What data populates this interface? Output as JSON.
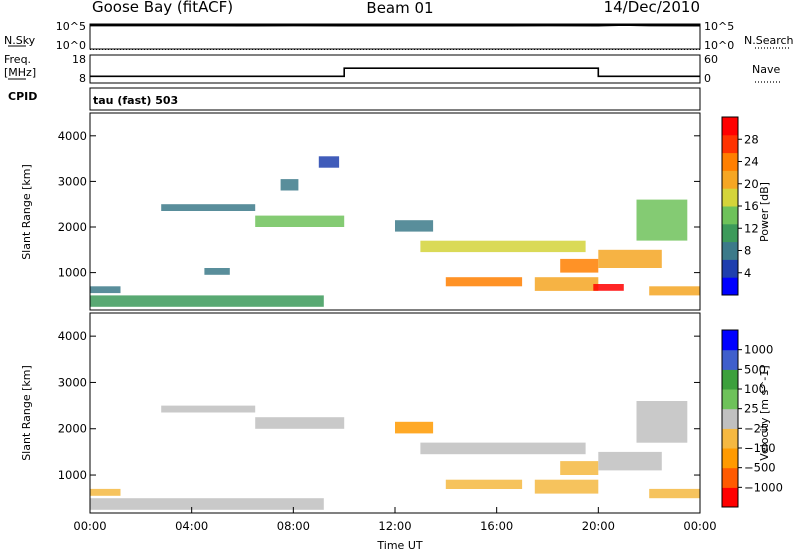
{
  "header": {
    "station": "Goose Bay (fitACF)",
    "beam": "Beam 01",
    "date": "14/Dec/2010"
  },
  "status_panel": {
    "nsky_label": "N.Sky",
    "nsky_ticks": [
      "10^5",
      "10^0"
    ],
    "nsearch_label": "N.Search",
    "nsearch_ticks": [
      "10^5",
      "10^0"
    ],
    "freq_label_line1": "Freq.",
    "freq_label_line2": "[MHz]",
    "freq_ticks": [
      "18",
      "8"
    ],
    "nave_label": "Nave",
    "nave_ticks": [
      "60",
      "0"
    ],
    "cpid_label": "CPID",
    "cpid_value": "tau (fast) 503"
  },
  "colors": {
    "data_line": "#000000",
    "ground_scatter": "#c0c0c0",
    "power_scale": [
      "#0000ff",
      "#1f3fae",
      "#3c7a8a",
      "#3c9a5a",
      "#6ec25a",
      "#d4d43a",
      "#f5a623",
      "#ff7f00",
      "#ff3300",
      "#ff0000"
    ],
    "velocity_scale": [
      "#ff0000",
      "#ff5a00",
      "#ff9a00",
      "#f5b841",
      "#c0c0c0",
      "#6ec25a",
      "#3ca03c",
      "#3f5fcc",
      "#0000ff"
    ]
  },
  "chart_data": [
    {
      "type": "line",
      "title": "N.Sky / N.Search",
      "x": [
        0,
        2,
        4,
        6,
        8,
        10,
        12,
        14,
        16,
        18,
        20,
        21,
        22,
        24
      ],
      "series": [
        {
          "name": "N.Sky",
          "values": [
            55000,
            54000,
            55000,
            53000,
            54000,
            52000,
            53000,
            52000,
            53000,
            54000,
            53000,
            70000,
            56000,
            53000
          ]
        }
      ],
      "xlim": [
        0,
        24
      ],
      "ylim": [
        1,
        100000
      ],
      "yscale": "log"
    },
    {
      "type": "line",
      "title": "Freq. / Nave",
      "x": [
        0,
        10,
        10,
        20,
        20,
        24
      ],
      "series": [
        {
          "name": "Freq.",
          "values": [
            10.4,
            10.4,
            13.3,
            13.3,
            10.4,
            10.4
          ]
        },
        {
          "name": "Nave",
          "values": [
            20,
            20,
            20,
            20,
            20,
            20
          ]
        }
      ],
      "xlim": [
        0,
        24
      ],
      "ylim": [
        8,
        18
      ]
    },
    {
      "type": "heatmap",
      "ylabel": "Slant Range [km]",
      "colorbar_label": "Power [dB]",
      "colorbar_ticks": [
        "28",
        "24",
        "20",
        "16",
        "12",
        "8",
        "4"
      ],
      "clim": [
        0,
        30
      ],
      "xlim": [
        0,
        24
      ],
      "ylim": [
        180,
        4500
      ],
      "yticks": [
        "4000",
        "3000",
        "2000",
        "1000"
      ],
      "regions": [
        {
          "x0": 0.0,
          "x1": 9.2,
          "y0": 250,
          "y1": 500,
          "value": 10
        },
        {
          "x0": 0.0,
          "x1": 1.2,
          "y0": 550,
          "y1": 700,
          "value": 8
        },
        {
          "x0": 2.8,
          "x1": 6.5,
          "y0": 2350,
          "y1": 2500,
          "value": 6
        },
        {
          "x0": 6.5,
          "x1": 10.0,
          "y0": 2000,
          "y1": 2250,
          "value": 14
        },
        {
          "x0": 7.5,
          "x1": 8.2,
          "y0": 2800,
          "y1": 3050,
          "value": 6
        },
        {
          "x0": 9.0,
          "x1": 9.8,
          "y0": 3300,
          "y1": 3550,
          "value": 5
        },
        {
          "x0": 4.5,
          "x1": 5.5,
          "y0": 950,
          "y1": 1100,
          "value": 8
        },
        {
          "x0": 12.0,
          "x1": 13.5,
          "y0": 1900,
          "y1": 2150,
          "value": 6
        },
        {
          "x0": 13.0,
          "x1": 19.5,
          "y0": 1450,
          "y1": 1700,
          "value": 16
        },
        {
          "x0": 14.0,
          "x1": 17.0,
          "y0": 700,
          "y1": 900,
          "value": 22
        },
        {
          "x0": 17.5,
          "x1": 20.0,
          "y0": 600,
          "y1": 900,
          "value": 20
        },
        {
          "x0": 18.5,
          "x1": 20.0,
          "y0": 1000,
          "y1": 1300,
          "value": 22
        },
        {
          "x0": 19.8,
          "x1": 21.0,
          "y0": 600,
          "y1": 750,
          "value": 28
        },
        {
          "x0": 20.0,
          "x1": 22.5,
          "y0": 1100,
          "y1": 1500,
          "value": 18
        },
        {
          "x0": 21.5,
          "x1": 23.5,
          "y0": 1700,
          "y1": 2600,
          "value": 14
        },
        {
          "x0": 22.0,
          "x1": 24.0,
          "y0": 500,
          "y1": 700,
          "value": 18
        }
      ]
    },
    {
      "type": "heatmap",
      "xlabel": "Time UT",
      "ylabel": "Slant Range [km]",
      "colorbar_label": "Velocity [m s^-1]",
      "colorbar_ticks": [
        "1000",
        "500",
        "100",
        "25",
        "−25",
        "−100",
        "−500",
        "−1000"
      ],
      "clim": [
        -1200,
        1200
      ],
      "xlim": [
        0,
        24
      ],
      "ylim": [
        180,
        4500
      ],
      "yticks": [
        "4000",
        "3000",
        "2000",
        "1000"
      ],
      "xticks": [
        "00:00",
        "04:00",
        "08:00",
        "12:00",
        "16:00",
        "20:00",
        "00:00"
      ],
      "regions": [
        {
          "x0": 0.0,
          "x1": 9.2,
          "y0": 250,
          "y1": 500,
          "value": 0
        },
        {
          "x0": 0.0,
          "x1": 1.2,
          "y0": 550,
          "y1": 700,
          "value": -200
        },
        {
          "x0": 2.8,
          "x1": 6.5,
          "y0": 2350,
          "y1": 2500,
          "value": 0
        },
        {
          "x0": 6.5,
          "x1": 10.0,
          "y0": 2000,
          "y1": 2250,
          "value": 0
        },
        {
          "x0": 12.0,
          "x1": 13.5,
          "y0": 1900,
          "y1": 2150,
          "value": -600
        },
        {
          "x0": 13.0,
          "x1": 19.5,
          "y0": 1450,
          "y1": 1700,
          "value": 0
        },
        {
          "x0": 14.0,
          "x1": 17.0,
          "y0": 700,
          "y1": 900,
          "value": -300
        },
        {
          "x0": 17.5,
          "x1": 20.0,
          "y0": 600,
          "y1": 900,
          "value": -200
        },
        {
          "x0": 18.5,
          "x1": 20.0,
          "y0": 1000,
          "y1": 1300,
          "value": -400
        },
        {
          "x0": 20.0,
          "x1": 22.5,
          "y0": 1100,
          "y1": 1500,
          "value": 0
        },
        {
          "x0": 21.5,
          "x1": 23.5,
          "y0": 1700,
          "y1": 2600,
          "value": 0
        },
        {
          "x0": 22.0,
          "x1": 24.0,
          "y0": 500,
          "y1": 700,
          "value": -200
        }
      ]
    }
  ]
}
